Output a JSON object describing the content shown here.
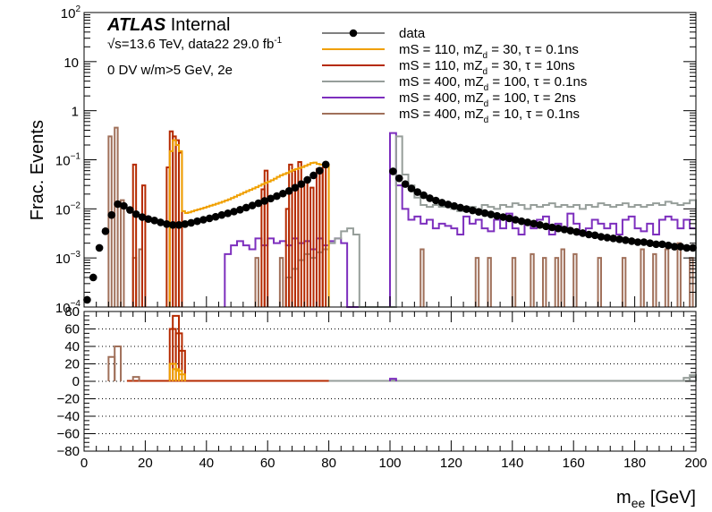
{
  "chart_data": [
    {
      "type": "histogram",
      "panel": "main",
      "ylabel": "Frac. Events",
      "xlabel": "m_ee [GeV]",
      "yscale": "log",
      "xlim": [
        0,
        200
      ],
      "ylim": [
        0.0001,
        100
      ],
      "y_tick_labels": [
        {
          "value": 100,
          "base": "10",
          "exp": "2"
        },
        {
          "value": 10,
          "base": "10",
          "exp": ""
        },
        {
          "value": 1,
          "base": "1",
          "exp": ""
        },
        {
          "value": 0.1,
          "base": "10",
          "exp": "−1"
        },
        {
          "value": 0.01,
          "base": "10",
          "exp": "−2"
        },
        {
          "value": 0.001,
          "base": "10",
          "exp": "−3"
        },
        {
          "value": 0.0001,
          "base": "10",
          "exp": "−4"
        }
      ],
      "annotations": {
        "experiment": "ATLAS",
        "status": "Internal",
        "energy_pre": "√s=13.6 TeV, data22 29.0 fb",
        "energy_sup": "-1",
        "selection": "0 DV w/m>5 GeV, 2e"
      },
      "legend_position": "top-center",
      "series": [
        {
          "name": "data",
          "color": "#000000",
          "style": "points",
          "x": [
            1,
            3,
            5,
            7,
            9,
            11,
            13,
            15,
            17,
            19,
            21,
            23,
            25,
            27,
            29,
            31,
            33,
            35,
            37,
            39,
            41,
            43,
            45,
            47,
            49,
            51,
            53,
            55,
            57,
            59,
            61,
            63,
            65,
            67,
            69,
            71,
            73,
            75,
            77,
            79,
            101,
            103,
            105,
            107,
            109,
            111,
            113,
            115,
            117,
            119,
            121,
            123,
            125,
            127,
            129,
            131,
            133,
            135,
            137,
            139,
            141,
            143,
            145,
            147,
            149,
            151,
            153,
            155,
            157,
            159,
            161,
            163,
            165,
            167,
            169,
            171,
            173,
            175,
            177,
            179,
            181,
            183,
            185,
            187,
            189,
            191,
            193,
            195,
            197,
            199
          ],
          "y": [
            0.00014,
            0.0004,
            0.0016,
            0.0035,
            0.0075,
            0.0125,
            0.0115,
            0.0095,
            0.0078,
            0.0068,
            0.0062,
            0.0058,
            0.0053,
            0.0049,
            0.0047,
            0.0047,
            0.0049,
            0.0052,
            0.0056,
            0.006,
            0.0064,
            0.0069,
            0.0075,
            0.0081,
            0.0088,
            0.0096,
            0.0106,
            0.0117,
            0.013,
            0.0145,
            0.0162,
            0.0182,
            0.0205,
            0.0232,
            0.027,
            0.032,
            0.039,
            0.048,
            0.06,
            0.08,
            0.058,
            0.042,
            0.032,
            0.026,
            0.022,
            0.019,
            0.0165,
            0.0148,
            0.0134,
            0.0123,
            0.0114,
            0.0106,
            0.0099,
            0.0093,
            0.0087,
            0.0082,
            0.0077,
            0.0072,
            0.0068,
            0.0064,
            0.006,
            0.0056,
            0.0053,
            0.005,
            0.0047,
            0.0044,
            0.0042,
            0.004,
            0.0038,
            0.0036,
            0.0034,
            0.0032,
            0.003,
            0.0029,
            0.0027,
            0.0026,
            0.0025,
            0.0024,
            0.0023,
            0.0022,
            0.0021,
            0.0021,
            0.002,
            0.0019,
            0.0019,
            0.0018,
            0.0017,
            0.0017,
            0.0016,
            0.0016
          ]
        },
        {
          "name": "mS = 110, mZ_d = 30, τ = 0.1ns",
          "label": "mS = 110, mZ",
          "sub": "d",
          "label_rest": " = 30, τ = 0.1ns",
          "color": "#f0a000",
          "style": "step",
          "x0": 28,
          "x1": 80,
          "binw": 1,
          "y": [
            0.15,
            0.25,
            0.2,
            0.15,
            0.009,
            0.0082,
            0.0085,
            0.0089,
            0.0093,
            0.0097,
            0.0101,
            0.0106,
            0.0111,
            0.0116,
            0.0121,
            0.0127,
            0.0133,
            0.014,
            0.0148,
            0.0156,
            0.0166,
            0.0177,
            0.0189,
            0.0202,
            0.0216,
            0.023,
            0.0244,
            0.0259,
            0.0276,
            0.0296,
            0.0319,
            0.034,
            0.0359,
            0.0383,
            0.0412,
            0.0448,
            0.0482,
            0.0511,
            0.0539,
            0.058,
            0.0618,
            0.0648,
            0.0678,
            0.0711,
            0.0752,
            0.0803,
            0.0858,
            0.0876,
            0.0823,
            0.08,
            0.08,
            0.08
          ]
        },
        {
          "name": "mS = 110, mZ_d = 30, τ = 10ns",
          "label": "mS = 110, mZ",
          "sub": "d",
          "label_rest": " = 30, τ = 10ns",
          "color": "#b52a00",
          "style": "spikes",
          "bins": [
            [
              16,
              0.08
            ],
            [
              19,
              0.03
            ],
            [
              27,
              0.07
            ],
            [
              28,
              0.38
            ],
            [
              29,
              0.3
            ],
            [
              30,
              0.25
            ],
            [
              31,
              0.14
            ],
            [
              58,
              0.025
            ],
            [
              59,
              0.06
            ],
            [
              66,
              0.01
            ],
            [
              67,
              0.08
            ],
            [
              68,
              0.06
            ],
            [
              69,
              0.028
            ],
            [
              70,
              0.09
            ],
            [
              72,
              0.035
            ],
            [
              74,
              0.027
            ],
            [
              76,
              0.065
            ],
            [
              77,
              0.062
            ],
            [
              78,
              0.07
            ]
          ]
        },
        {
          "name": "mS = 400, mZ_d = 100, τ = 0.1ns",
          "label": "mS = 400, mZ",
          "sub": "d",
          "label_rest": " = 100, τ = 0.1ns",
          "color": "#969e9a",
          "style": "step",
          "x0": 66,
          "x1": 200,
          "binw": 2,
          "y": [
            0.0004,
            0.0006,
            0.0009,
            0.0012,
            0.001,
            0.0013,
            0.0015,
            0.002,
            0.0025,
            0.0035,
            0.004,
            0.003,
            0.0001,
            0.0001,
            0.0001,
            0.0001,
            0.0001,
            0.0001,
            0.3,
            0.05,
            0.03,
            0.017,
            0.012,
            0.011,
            0.012,
            0.011,
            0.012,
            0.01,
            0.009,
            0.01,
            0.011,
            0.0095,
            0.012,
            0.011,
            0.01,
            0.012,
            0.011,
            0.013,
            0.012,
            0.01,
            0.012,
            0.011,
            0.012,
            0.013,
            0.011,
            0.012,
            0.011,
            0.012,
            0.01,
            0.012,
            0.011,
            0.013,
            0.012,
            0.011,
            0.012,
            0.013,
            0.011,
            0.012,
            0.011,
            0.012,
            0.013,
            0.012,
            0.014,
            0.013,
            0.012,
            0.013,
            0.015
          ]
        },
        {
          "name": "mS = 400, mZ_d = 100, τ = 2ns",
          "label": "mS = 400, mZ",
          "sub": "d",
          "label_rest": " = 100, τ = 2ns",
          "color": "#7d2fbe",
          "style": "step",
          "x0": 46,
          "x1": 200,
          "binw": 2,
          "y": [
            0.0012,
            0.0018,
            0.0022,
            0.0018,
            0.0015,
            0.0025,
            0.0018,
            0.0025,
            0.002,
            0.0022,
            0.0018,
            0.0025,
            0.002,
            0.0022,
            0.0015,
            0.0025,
            0.0018,
            0.0022,
            0.0025,
            0.002,
            0.0001,
            0.0001,
            0.0001,
            0.0001,
            0.0001,
            0.0001,
            0.0001,
            0.35,
            0.03,
            0.01,
            0.006,
            0.007,
            0.005,
            0.006,
            0.004,
            0.005,
            0.0045,
            0.004,
            0.003,
            0.007,
            0.005,
            0.006,
            0.004,
            0.0035,
            0.006,
            0.004,
            0.008,
            0.004,
            0.003,
            0.005,
            0.004,
            0.006,
            0.007,
            0.003,
            0.005,
            0.004,
            0.008,
            0.005,
            0.003,
            0.004,
            0.006,
            0.005,
            0.004,
            0.005,
            0.003,
            0.006,
            0.007,
            0.004,
            0.0035,
            0.005,
            0.003,
            0.006,
            0.007,
            0.006,
            0.004,
            0.006,
            0.004
          ]
        },
        {
          "name": "mS = 400, mZ_d = 10, τ = 0.1ns",
          "label": "mS = 400, mZ",
          "sub": "d",
          "label_rest": " = 10, τ = 0.1ns",
          "color": "#a0705a",
          "style": "spikes",
          "bins": [
            [
              8,
              0.3
            ],
            [
              10,
              0.45
            ],
            [
              12,
              0.015
            ],
            [
              16,
              0.001
            ],
            [
              18,
              0.0015
            ],
            [
              56,
              0.001
            ],
            [
              64,
              0.001
            ],
            [
              110,
              0.0015
            ],
            [
              128,
              0.001
            ],
            [
              132,
              0.001
            ],
            [
              140,
              0.001
            ],
            [
              146,
              0.0012
            ],
            [
              150,
              0.001
            ],
            [
              154,
              0.001
            ],
            [
              156,
              0.0015
            ],
            [
              160,
              0.0012
            ],
            [
              168,
              0.001
            ],
            [
              176,
              0.001
            ],
            [
              182,
              0.0015
            ],
            [
              186,
              0.0012
            ],
            [
              190,
              0.0015
            ],
            [
              194,
              0.002
            ],
            [
              198,
              0.001
            ]
          ]
        }
      ]
    },
    {
      "type": "histogram",
      "panel": "ratio",
      "xlabel": "m_ee [GeV]",
      "xlabel_main": "m",
      "xlabel_sub": "ee",
      "xlabel_rest": " [GeV]",
      "xlim": [
        0,
        200
      ],
      "ylim": [
        -80,
        80
      ],
      "x_tick_labels": [
        "0",
        "20",
        "40",
        "60",
        "80",
        "100",
        "120",
        "140",
        "160",
        "180",
        "200"
      ],
      "y_tick_labels": [
        "80",
        "60",
        "40",
        "20",
        "0",
        "−20",
        "−40",
        "−60",
        "−80"
      ],
      "grid": "horizontal dotted",
      "ratio_bins": [
        {
          "series": 5,
          "bins": [
            [
              8,
              28
            ],
            [
              10,
              40
            ],
            [
              16,
              5
            ]
          ]
        },
        {
          "series": 2,
          "bins": [
            [
              28,
              60
            ],
            [
              29,
              75
            ],
            [
              30,
              55
            ],
            [
              31,
              35
            ]
          ]
        },
        {
          "series": 1,
          "bins": [
            [
              28,
              20
            ],
            [
              29,
              14
            ],
            [
              30,
              12
            ],
            [
              31,
              8
            ]
          ]
        },
        {
          "series": 3,
          "bins": [
            [
              100,
              2
            ],
            [
              196,
              4
            ],
            [
              198,
              7
            ]
          ]
        },
        {
          "series": 4,
          "bins": [
            [
              100,
              3
            ]
          ]
        }
      ]
    }
  ]
}
